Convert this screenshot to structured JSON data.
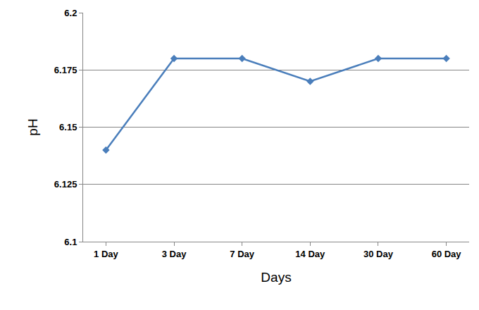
{
  "chart_data": {
    "type": "line",
    "x_label": "Days",
    "y_label": "pH",
    "categories": [
      "1 Day",
      "3 Day",
      "7 Day",
      "14 Day",
      "30 Day",
      "60 Day"
    ],
    "values": [
      6.14,
      6.18,
      6.18,
      6.17,
      6.18,
      6.18
    ],
    "color": "#4a7ebb",
    "marker": "diamond",
    "line_style": "solid",
    "ylim": [
      6.1,
      6.2
    ],
    "yticks": [
      6.1,
      6.125,
      6.15,
      6.175,
      6.2
    ],
    "grid": true
  }
}
